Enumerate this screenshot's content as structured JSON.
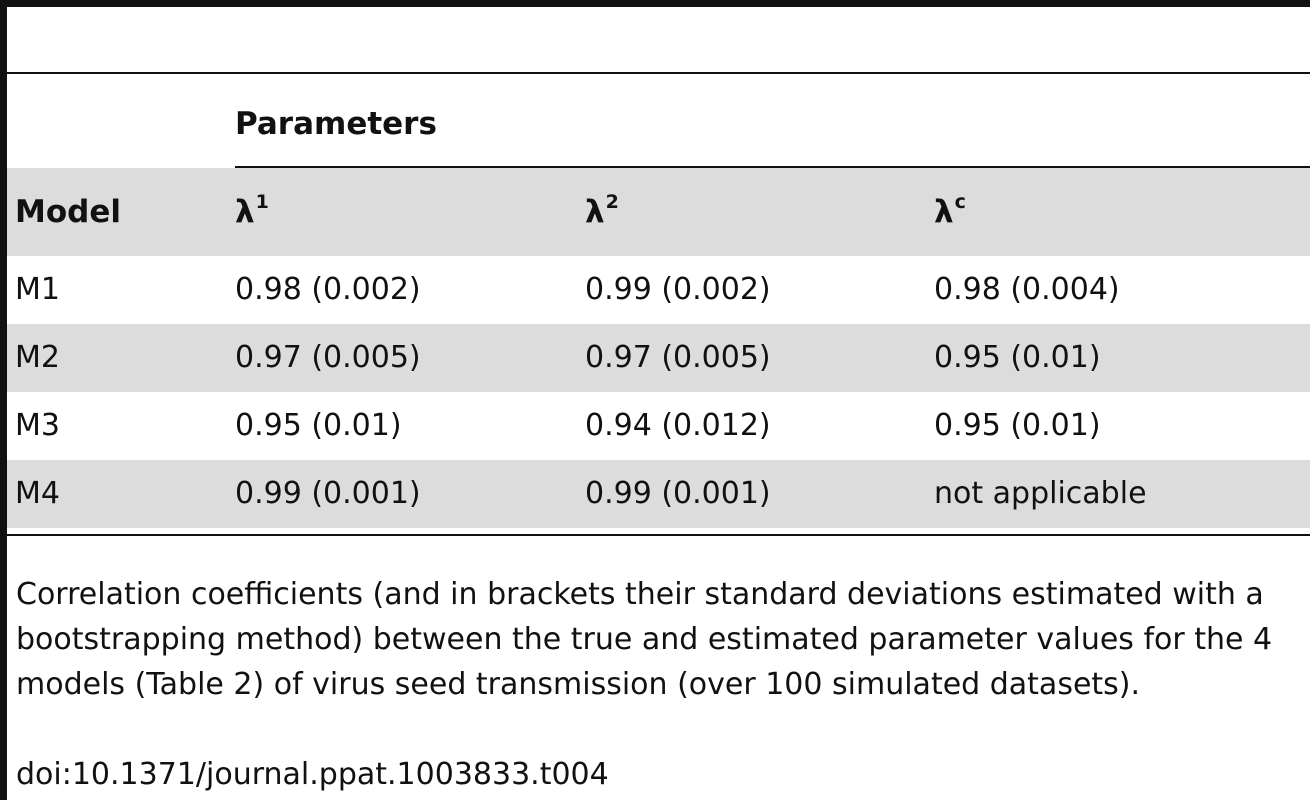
{
  "table": {
    "group_header": "Parameters",
    "columns": [
      {
        "label": "Model",
        "sup": ""
      },
      {
        "label": "λ",
        "sup": "1"
      },
      {
        "label": "λ",
        "sup": "2"
      },
      {
        "label": "λ",
        "sup": "c"
      }
    ],
    "rows": [
      {
        "model": "M1",
        "l1": "0.98 (0.002)",
        "l2": "0.99 (0.002)",
        "lc": "0.98 (0.004)"
      },
      {
        "model": "M2",
        "l1": "0.97 (0.005)",
        "l2": "0.97 (0.005)",
        "lc": "0.95 (0.01)"
      },
      {
        "model": "M3",
        "l1": "0.95 (0.01)",
        "l2": "0.94 (0.012)",
        "lc": "0.95 (0.01)"
      },
      {
        "model": "M4",
        "l1": "0.99 (0.001)",
        "l2": "0.99 (0.001)",
        "lc": "not applicable"
      }
    ]
  },
  "caption": "Correlation coefficients (and in brackets their standard deviations estimated with a bootstrapping method) between the true and estimated parameter values for the 4 models (Table 2) of virus seed transmission (over 100 simulated datasets).",
  "doi": "doi:10.1371/journal.ppat.1003833.t004",
  "colors": {
    "rule": "#111111",
    "shade": "#dcdcdc",
    "background": "#ffffff"
  }
}
